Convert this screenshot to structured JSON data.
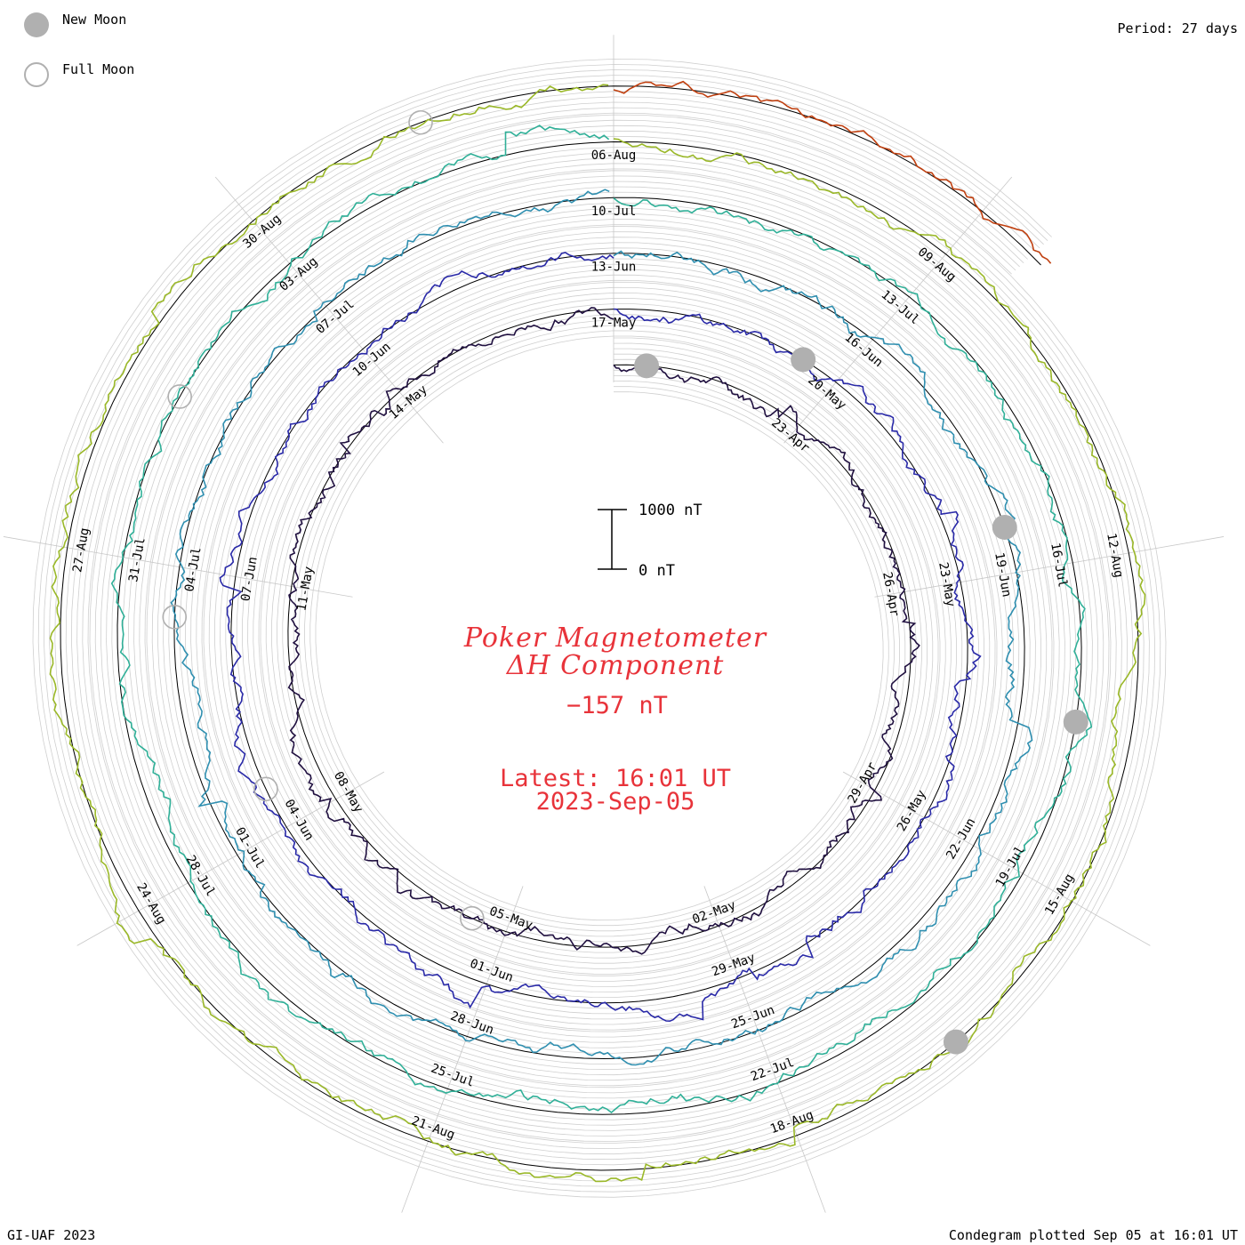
{
  "legend": {
    "new_moon": "New Moon",
    "full_moon": "Full Moon"
  },
  "period": "Period: 27 days",
  "credit": "GI-UAF 2023",
  "plotted": "Condegram plotted Sep 05 at 16:01 UT",
  "center": {
    "title_line1": "Poker Magnetometer",
    "title_line2": "ΔH Component",
    "current_value": "−157 nT",
    "latest_line1": "Latest: 16:01 UT",
    "latest_line2": "2023-Sep-05"
  },
  "scale_bar": {
    "top_label": "1000 nT",
    "bottom_label": "0 nT"
  },
  "colors": {
    "title": "#e8333a",
    "grid": "#c8c8c8",
    "baseline": "#000000",
    "moon_marker": "#b0b0b0"
  },
  "chart_data": {
    "type": "line",
    "title": "Poker Magnetometer ΔH Component",
    "period_days": 27,
    "start": "2023-04-20",
    "end": "2023-09-05",
    "units": "nT",
    "scale_reference": [
      0,
      1000
    ],
    "series": [
      {
        "color": "#201040",
        "date_labels": [
          "23-Apr",
          "26-Apr",
          "29-Apr",
          "02-May",
          "05-May",
          "08-May",
          "11-May",
          "14-May"
        ]
      },
      {
        "color": "#2a2aa8",
        "date_labels": [
          "17-May",
          "20-May",
          "23-May",
          "26-May",
          "29-May",
          "01-Jun",
          "04-Jun",
          "07-Jun",
          "10-Jun"
        ]
      },
      {
        "color": "#2f8fb0",
        "date_labels": [
          "13-Jun",
          "16-Jun",
          "19-Jun",
          "22-Jun",
          "25-Jun",
          "28-Jun",
          "01-Jul",
          "04-Jul",
          "07-Jul"
        ]
      },
      {
        "color": "#30b098",
        "date_labels": [
          "10-Jul",
          "13-Jul",
          "16-Jul",
          "19-Jul",
          "22-Jul",
          "25-Jul",
          "28-Jul",
          "31-Jul",
          "03-Aug"
        ]
      },
      {
        "color": "#9ab828",
        "date_labels": [
          "06-Aug",
          "09-Aug",
          "12-Aug",
          "15-Aug",
          "18-Aug",
          "21-Aug",
          "24-Aug",
          "27-Aug",
          "30-Aug"
        ]
      },
      {
        "color": "#c04010",
        "date_labels": []
      }
    ],
    "new_moons": [
      "2023-04-20",
      "2023-05-19",
      "2023-06-18",
      "2023-07-17",
      "2023-08-16"
    ],
    "full_moons": [
      "2023-05-05",
      "2023-06-04",
      "2023-07-03",
      "2023-08-01",
      "2023-08-31"
    ]
  }
}
